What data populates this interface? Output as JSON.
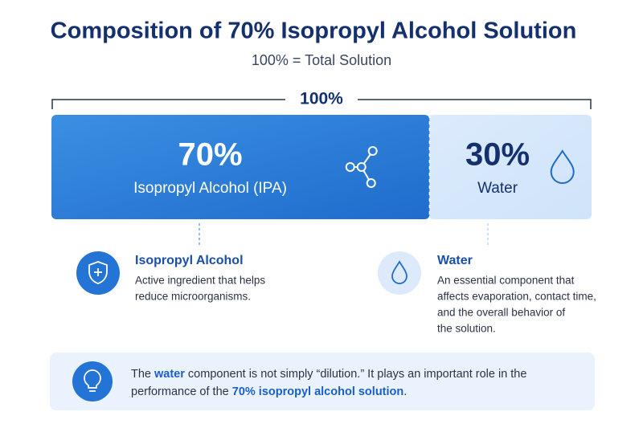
{
  "title": "Composition of 70% Isopropyl Alcohol Solution",
  "subtitle": "100% = Total Solution",
  "bar": {
    "total_label": "100%",
    "segments": [
      {
        "value": 70,
        "value_label": "70%",
        "name": "Isopropyl Alcohol (IPA)"
      },
      {
        "value": 30,
        "value_label": "30%",
        "name": "Water"
      }
    ]
  },
  "cards": [
    {
      "title": "Isopropyl Alcohol",
      "lines": [
        "Active ingredient that helps",
        "reduce microorganisms."
      ]
    },
    {
      "title": "Water",
      "lines": [
        "An essential component that",
        "affects evaporation, contact time,",
        "and the overall behavior of",
        "the solution."
      ]
    }
  ],
  "note": {
    "lines": [
      [
        "The ",
        "water",
        " component is not simply “dilution.”  It plays an important role in the"
      ],
      [
        "performance of the ",
        "70% isopropyl alcohol solution",
        "."
      ]
    ]
  }
}
